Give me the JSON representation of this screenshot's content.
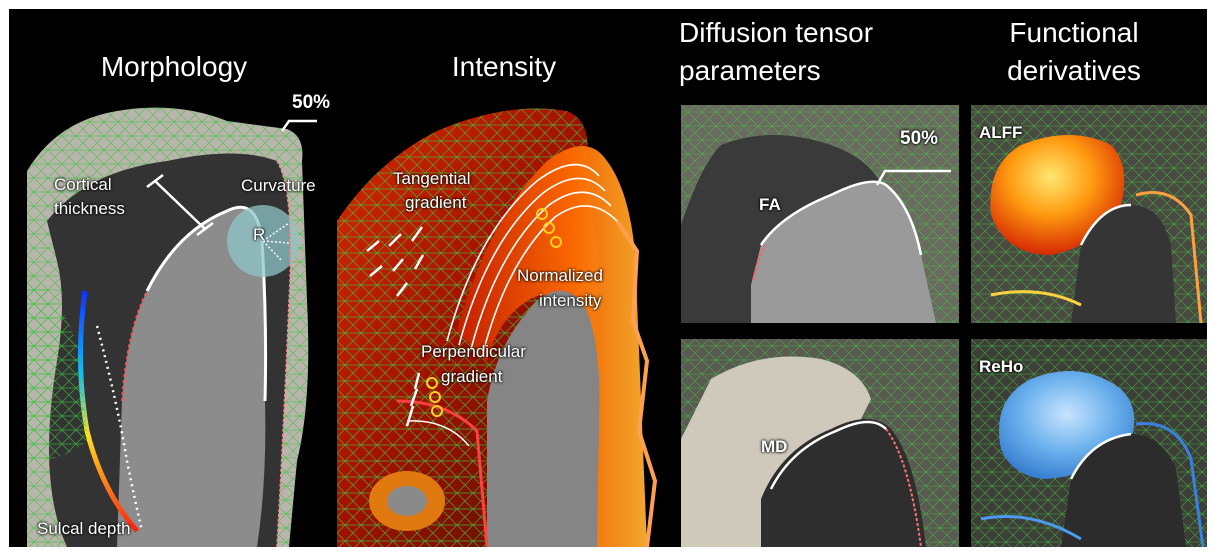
{
  "titles": {
    "morphology": "Morphology",
    "intensity": "Intensity",
    "dti_line1": "Diffusion tensor",
    "dti_line2": "parameters",
    "func_line1": "Functional",
    "func_line2": "derivatives"
  },
  "morphology_labels": {
    "depth_percent": "50%",
    "cortical_line1": "Cortical",
    "cortical_line2": "thickness",
    "curvature": "Curvature",
    "radius": "R",
    "sulcal_depth": "Sulcal depth"
  },
  "intensity_labels": {
    "tangential_line1": "Tangential",
    "tangential_line2": "gradient",
    "normalized_line1": "Normalized",
    "normalized_line2": "intensity",
    "perpendicular_line1": "Perpendicular",
    "perpendicular_line2": "gradient"
  },
  "dti_labels": {
    "depth_percent": "50%",
    "fa": "FA",
    "md": "MD"
  },
  "func_labels": {
    "alff": "ALFF",
    "reho": "ReHo"
  },
  "colors": {
    "background": "#000000",
    "mesh": "#3ec43e",
    "red_surface": "#c81e00",
    "alff_hot": "#ff9a10",
    "reho_blue": "#5aa8e8",
    "circle": "#8fc5c8"
  }
}
